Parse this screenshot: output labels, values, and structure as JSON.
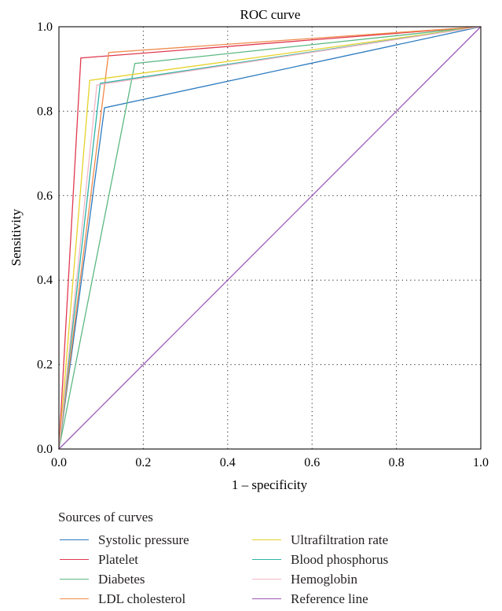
{
  "chart_data": {
    "type": "line",
    "title": "ROC curve",
    "xlabel": "1 – specificity",
    "ylabel": "Sensitivity",
    "xlim": [
      0.0,
      1.0
    ],
    "ylim": [
      0.0,
      1.0
    ],
    "xticks": [
      "0.0",
      "0.2",
      "0.4",
      "0.6",
      "0.8",
      "1.0"
    ],
    "yticks": [
      "0.0",
      "0.2",
      "0.4",
      "0.6",
      "0.8",
      "1.0"
    ],
    "grid": "dotted",
    "legend_title": "Sources of curves",
    "legend_placement": "bottom",
    "series": [
      {
        "name": "Systolic pressure",
        "color": "#2b7bc0",
        "x": [
          0,
          0.108,
          1
        ],
        "y": [
          0,
          0.808,
          1
        ]
      },
      {
        "name": "Platelet",
        "color": "#e0394f",
        "x": [
          0,
          0.052,
          1
        ],
        "y": [
          0,
          0.926,
          1
        ]
      },
      {
        "name": "Diabetes",
        "color": "#5cb882",
        "x": [
          0,
          0.18,
          1
        ],
        "y": [
          0,
          0.913,
          1
        ]
      },
      {
        "name": "LDL cholesterol",
        "color": "#f08a4b",
        "x": [
          0,
          0.118,
          1
        ],
        "y": [
          0,
          0.939,
          1
        ]
      },
      {
        "name": "Ultrafiltration rate",
        "color": "#e6d22a",
        "x": [
          0,
          0.073,
          1
        ],
        "y": [
          0,
          0.873,
          1
        ]
      },
      {
        "name": "Blood phosphorus",
        "color": "#2bb3a6",
        "x": [
          0,
          0.098,
          1
        ],
        "y": [
          0,
          0.866,
          1
        ]
      },
      {
        "name": "Hemoglobin",
        "color": "#f3b6c6",
        "x": [
          0,
          0.09,
          1
        ],
        "y": [
          0,
          0.862,
          1
        ]
      },
      {
        "name": "Reference line",
        "color": "#9b59b6",
        "x": [
          0,
          1
        ],
        "y": [
          0,
          1
        ]
      }
    ]
  }
}
